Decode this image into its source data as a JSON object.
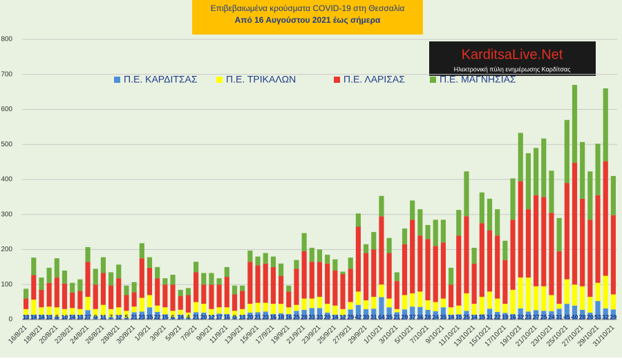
{
  "chart_data": {
    "type": "stacked-bar",
    "title": "Επιβεβαιωμένα κρούσματα COVID-19 στη Θεσσαλία",
    "subtitle": "Από 16 Αυγούστου 2021 έως σήμερα",
    "annotations": [
      "KarditsaLive.Net",
      "Ηλεκτρονική πύλη ενημέρωσης Καρδίτσας"
    ],
    "categories": [
      "16/8/21",
      null,
      "18/8/21",
      null,
      "20/8/21",
      null,
      "22/8/21",
      null,
      "24/8/21",
      null,
      "26/8/21",
      null,
      "28/8/21",
      null,
      "30/8/21",
      null,
      "1/9/21",
      null,
      "3/9/21",
      null,
      "5/9/21",
      null,
      "7/9/21",
      null,
      "9/9/21",
      null,
      "11/9/21",
      null,
      "13/9/21",
      null,
      "15/9/21",
      null,
      "17/9/21",
      null,
      "19/9/21",
      null,
      "21/9/21",
      null,
      "23/9/21",
      null,
      "25/9/21",
      null,
      "27/9/21",
      null,
      "29/9/21",
      null,
      "1/10/21",
      null,
      "3/10/21",
      null,
      "5/10/21",
      null,
      "7/10/21",
      null,
      "9/10/21",
      null,
      "11/10/21",
      null,
      "13/10/21",
      null,
      "15/10/21",
      null,
      "17/10/21",
      null,
      "19/10/21",
      null,
      "21/10/21",
      null,
      "23/10/21",
      null,
      "25/10/21",
      null,
      "27/10/21",
      null,
      "29/10/21",
      null,
      "31/10/21"
    ],
    "series": [
      {
        "name": "Π.Ε. ΚΑΡΔΙΤΣΑΣ",
        "color": "#4f8fd6",
        "values": [
          13,
          14,
          14,
          13,
          8,
          10,
          14,
          13,
          27,
          9,
          11,
          7,
          12,
          5,
          21,
          23,
          35,
          22,
          15,
          6,
          14,
          4,
          21,
          20,
          12,
          17,
          16,
          9,
          13,
          20,
          21,
          23,
          16,
          18,
          16,
          25,
          28,
          33,
          33,
          20,
          14,
          12,
          29,
          42,
          30,
          31,
          64,
          35,
          21,
          29,
          37,
          36,
          28,
          24,
          35,
          14,
          15,
          25,
          14,
          15,
          31,
          22,
          19,
          16,
          32,
          23,
          27,
          25,
          24,
          31,
          45,
          40,
          28,
          20,
          53,
          32,
          29
        ]
      },
      {
        "name": "Π.Ε. ΤΡΙΚΑΛΩΝ",
        "color": "#ffff00",
        "values": [
          17,
          43,
          21,
          24,
          27,
          20,
          19,
          17,
          38,
          21,
          31,
          23,
          23,
          20,
          16,
          39,
          35,
          18,
          20,
          19,
          14,
          16,
          29,
          25,
          18,
          18,
          19,
          16,
          17,
          25,
          27,
          25,
          29,
          27,
          19,
          17,
          32,
          27,
          32,
          25,
          26,
          18,
          21,
          38,
          25,
          34,
          36,
          25,
          9,
          41,
          38,
          44,
          27,
          26,
          25,
          21,
          25,
          50,
          31,
          50,
          49,
          38,
          26,
          69,
          88,
          97,
          68,
          70,
          46,
          14,
          70,
          60,
          67,
          45,
          52,
          93,
          43
        ]
      },
      {
        "name": "Π.Ε. ΛΑΡΙΣΑΣ",
        "color": "#e8382f",
        "values": [
          30,
          70,
          50,
          68,
          85,
          73,
          44,
          52,
          100,
          70,
          91,
          68,
          83,
          45,
          41,
          113,
          78,
          78,
          65,
          75,
          39,
          50,
          85,
          55,
          70,
          65,
          87,
          47,
          52,
          120,
          107,
          112,
          105,
          80,
          45,
          103,
          135,
          105,
          100,
          115,
          100,
          100,
          95,
          185,
          135,
          135,
          195,
          130,
          80,
          145,
          210,
          160,
          175,
          160,
          160,
          65,
          200,
          220,
          115,
          210,
          175,
          180,
          125,
          200,
          275,
          195,
          260,
          255,
          235,
          150,
          275,
          348,
          250,
          220,
          250,
          327,
          226
        ]
      },
      {
        "name": "Π.Ε. ΜΑΓΝΗΣΙΑΣ",
        "color": "#6fae3f",
        "values": [
          28,
          50,
          35,
          43,
          55,
          37,
          28,
          33,
          42,
          45,
          45,
          37,
          39,
          27,
          29,
          43,
          30,
          32,
          18,
          28,
          18,
          20,
          30,
          33,
          33,
          18,
          28,
          25,
          15,
          32,
          25,
          30,
          30,
          35,
          17,
          25,
          52,
          40,
          35,
          25,
          32,
          7,
          32,
          38,
          25,
          50,
          58,
          43,
          25,
          45,
          55,
          75,
          40,
          75,
          65,
          48,
          73,
          128,
          45,
          88,
          90,
          75,
          55,
          118,
          138,
          160,
          135,
          167,
          120,
          95,
          180,
          222,
          162,
          138,
          147,
          208,
          112
        ]
      }
    ],
    "value_labels_series": 0,
    "ylim": [
      0,
      800
    ],
    "yticks": [
      0,
      100,
      200,
      300,
      400,
      500,
      600,
      700,
      800
    ],
    "grid": true
  }
}
